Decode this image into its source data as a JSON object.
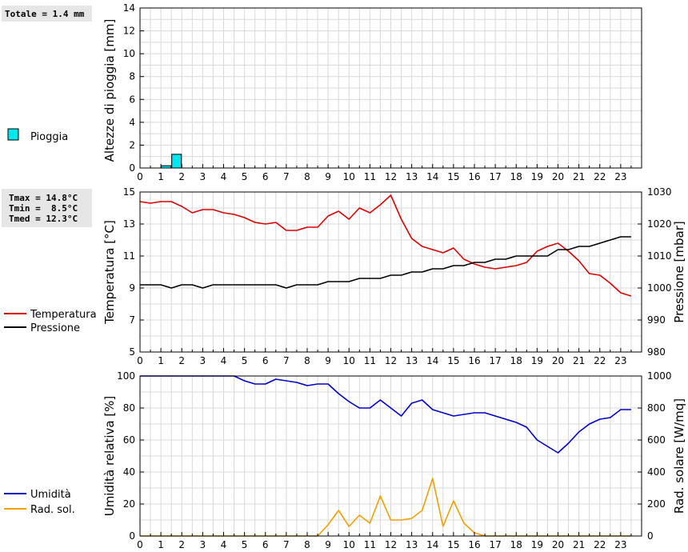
{
  "chart_data": [
    {
      "type": "bar",
      "summary": "Totale = 1.4 mm",
      "ylabel": "Altezze di pioggia [mm]",
      "ylim": [
        0,
        14
      ],
      "yticks": [
        0,
        2,
        4,
        6,
        8,
        10,
        12,
        14
      ],
      "xlim": [
        0,
        24
      ],
      "xticks": [
        "0",
        "1",
        "2",
        "3",
        "4",
        "5",
        "6",
        "7",
        "8",
        "9",
        "10",
        "11",
        "12",
        "13",
        "14",
        "15",
        "16",
        "17",
        "18",
        "19",
        "20",
        "21",
        "22",
        "23"
      ],
      "series": [
        {
          "name": "Pioggia",
          "color": "#00e5ee",
          "bars": [
            {
              "x0": 1.0,
              "x1": 1.5,
              "value": 0.2
            },
            {
              "x0": 1.5,
              "x1": 2.0,
              "value": 1.2
            }
          ]
        }
      ]
    },
    {
      "type": "line",
      "summary": [
        "Tmax = 14.8°C",
        "Tmin =  8.5°C",
        "Tmed = 12.3°C"
      ],
      "ylabel": "Temperatura [°C]",
      "y2label": "Pressione [mbar]",
      "ylim": [
        5,
        15
      ],
      "yticks": [
        5,
        7,
        9,
        11,
        13,
        15
      ],
      "y2lim": [
        980,
        1030
      ],
      "y2ticks": [
        980,
        990,
        1000,
        1010,
        1020,
        1030
      ],
      "xlim": [
        0,
        24
      ],
      "xticks": [
        "0",
        "1",
        "2",
        "3",
        "4",
        "5",
        "6",
        "7",
        "8",
        "9",
        "10",
        "11",
        "12",
        "13",
        "14",
        "15",
        "16",
        "17",
        "18",
        "19",
        "20",
        "21",
        "22",
        "23"
      ],
      "series": [
        {
          "name": "Temperatura",
          "color": "#dd0000",
          "axis": "left",
          "x": [
            0,
            0.5,
            1,
            1.5,
            2,
            2.5,
            3,
            3.5,
            4,
            4.5,
            5,
            5.5,
            6,
            6.5,
            7,
            7.5,
            8,
            8.5,
            9,
            9.5,
            10,
            10.5,
            11,
            11.5,
            12,
            12.5,
            13,
            13.5,
            14,
            14.5,
            15,
            15.5,
            16,
            16.5,
            17,
            17.5,
            18,
            18.5,
            19,
            19.5,
            20,
            20.5,
            21,
            21.5,
            22,
            22.5,
            23,
            23.5
          ],
          "y": [
            14.4,
            14.3,
            14.4,
            14.4,
            14.1,
            13.7,
            13.9,
            13.9,
            13.7,
            13.6,
            13.4,
            13.1,
            13.0,
            13.1,
            12.6,
            12.6,
            12.8,
            12.8,
            13.5,
            13.8,
            13.3,
            14.0,
            13.7,
            14.2,
            14.8,
            13.3,
            12.1,
            11.6,
            11.4,
            11.2,
            11.5,
            10.8,
            10.5,
            10.3,
            10.2,
            10.3,
            10.4,
            10.6,
            11.3,
            11.6,
            11.8,
            11.3,
            10.7,
            9.9,
            9.8,
            9.3,
            8.7,
            8.5
          ]
        },
        {
          "name": "Pressione",
          "color": "#000000",
          "axis": "right",
          "x": [
            0,
            0.5,
            1,
            1.5,
            2,
            2.5,
            3,
            3.5,
            4,
            4.5,
            5,
            5.5,
            6,
            6.5,
            7,
            7.5,
            8,
            8.5,
            9,
            9.5,
            10,
            10.5,
            11,
            11.5,
            12,
            12.5,
            13,
            13.5,
            14,
            14.5,
            15,
            15.5,
            16,
            16.5,
            17,
            17.5,
            18,
            18.5,
            19,
            19.5,
            20,
            20.5,
            21,
            21.5,
            22,
            22.5,
            23,
            23.5
          ],
          "y": [
            1001,
            1001,
            1001,
            1000,
            1001,
            1001,
            1000,
            1001,
            1001,
            1001,
            1001,
            1001,
            1001,
            1001,
            1000,
            1001,
            1001,
            1001,
            1002,
            1002,
            1002,
            1003,
            1003,
            1003,
            1004,
            1004,
            1005,
            1005,
            1006,
            1006,
            1007,
            1007,
            1008,
            1008,
            1009,
            1009,
            1010,
            1010,
            1010,
            1010,
            1012,
            1012,
            1013,
            1013,
            1014,
            1015,
            1016,
            1016
          ]
        }
      ]
    },
    {
      "type": "line",
      "ylabel": "Umidità relativa [%]",
      "y2label": "Rad. solare [W/mq]",
      "ylim": [
        0,
        100
      ],
      "yticks": [
        0,
        20,
        40,
        60,
        80,
        100
      ],
      "y2lim": [
        0,
        1000
      ],
      "y2ticks": [
        0,
        200,
        400,
        600,
        800,
        1000
      ],
      "xlim": [
        0,
        24
      ],
      "xticks": [
        "0",
        "1",
        "2",
        "3",
        "4",
        "5",
        "6",
        "7",
        "8",
        "9",
        "10",
        "11",
        "12",
        "13",
        "14",
        "15",
        "16",
        "17",
        "18",
        "19",
        "20",
        "21",
        "22",
        "23"
      ],
      "series": [
        {
          "name": "Umidità",
          "color": "#0000cc",
          "axis": "left",
          "x": [
            0,
            0.5,
            1,
            1.5,
            2,
            2.5,
            3,
            3.5,
            4,
            4.5,
            5,
            5.5,
            6,
            6.5,
            7,
            7.5,
            8,
            8.5,
            9,
            9.5,
            10,
            10.5,
            11,
            11.5,
            12,
            12.5,
            13,
            13.5,
            14,
            14.5,
            15,
            15.5,
            16,
            16.5,
            17,
            17.5,
            18,
            18.5,
            19,
            19.5,
            20,
            20.5,
            21,
            21.5,
            22,
            22.5,
            23,
            23.5
          ],
          "y": [
            100,
            100,
            100,
            100,
            100,
            100,
            100,
            100,
            100,
            100,
            97,
            95,
            95,
            98,
            97,
            96,
            94,
            95,
            95,
            89,
            84,
            80,
            80,
            85,
            80,
            75,
            83,
            85,
            79,
            77,
            75,
            76,
            77,
            77,
            75,
            73,
            71,
            68,
            60,
            56,
            52,
            58,
            65,
            70,
            73,
            74,
            79,
            79
          ]
        },
        {
          "name": "Rad. sol.",
          "color": "#f0a000",
          "axis": "right",
          "x": [
            0,
            0.5,
            1,
            1.5,
            2,
            2.5,
            3,
            3.5,
            4,
            4.5,
            5,
            5.5,
            6,
            6.5,
            7,
            7.5,
            8,
            8.5,
            9,
            9.5,
            10,
            10.5,
            11,
            11.5,
            12,
            12.5,
            13,
            13.5,
            14,
            14.5,
            15,
            15.5,
            16,
            16.5,
            17,
            17.5,
            18,
            18.5,
            19,
            19.5,
            20,
            20.5,
            21,
            21.5,
            22,
            22.5,
            23,
            23.5
          ],
          "y": [
            0,
            0,
            0,
            0,
            0,
            0,
            0,
            0,
            0,
            0,
            0,
            0,
            0,
            0,
            0,
            0,
            0,
            0,
            70,
            160,
            60,
            130,
            80,
            250,
            100,
            100,
            110,
            160,
            360,
            60,
            220,
            80,
            20,
            0,
            0,
            0,
            0,
            0,
            0,
            0,
            0,
            0,
            0,
            0,
            0,
            0,
            0,
            0
          ]
        }
      ]
    }
  ]
}
